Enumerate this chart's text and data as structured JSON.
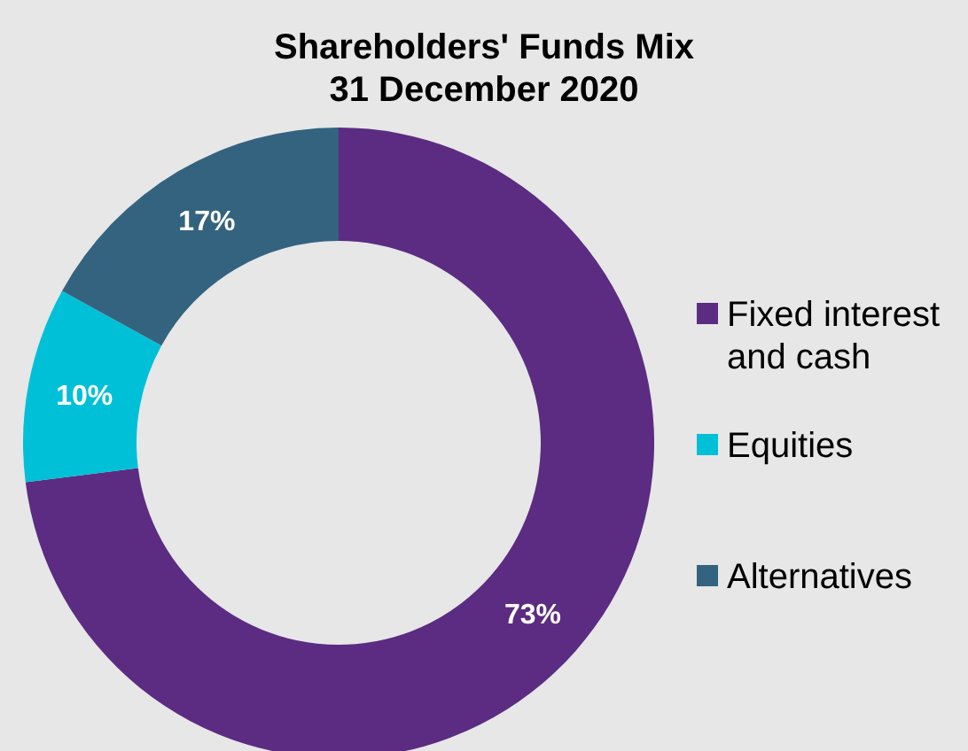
{
  "chart_data": {
    "type": "donut",
    "title": "Shareholders' Funds Mix",
    "subtitle": "31 December 2020",
    "categories": [
      "Fixed interest and cash",
      "Equities",
      "Alternatives"
    ],
    "values": [
      73,
      10,
      17
    ],
    "colors": [
      "#5b2c82",
      "#00c0d8",
      "#33637f"
    ],
    "value_labels": [
      "73%",
      "10%",
      "17%"
    ],
    "legend": "right"
  }
}
